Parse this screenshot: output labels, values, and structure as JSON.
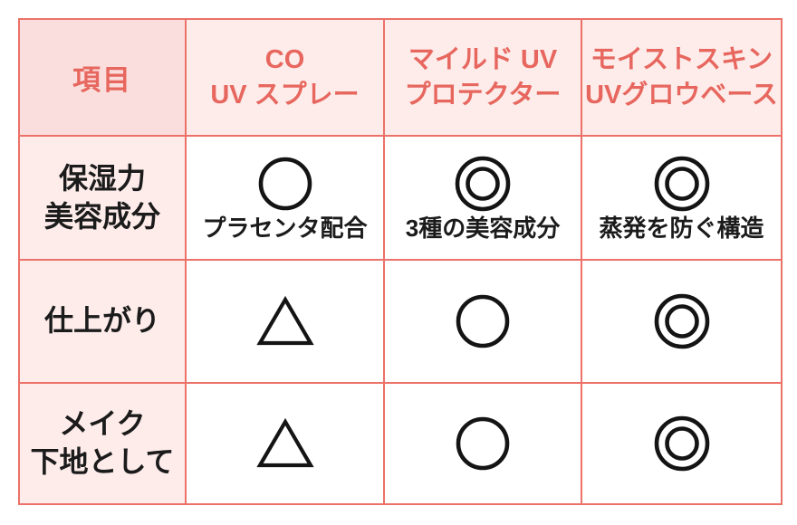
{
  "table": {
    "header": {
      "item_label": "項目",
      "products": [
        {
          "name_line1": "CO",
          "name_line2": "UV スプレー",
          "highlighted": false
        },
        {
          "name_line1": "マイルド UV",
          "name_line2": "プロテクター",
          "highlighted": false
        },
        {
          "name_line1": "モイストスキン",
          "name_line2": "UVグロウベース",
          "highlighted": true
        }
      ]
    },
    "rows": [
      {
        "label_line1": "保湿力",
        "label_line2": "美容成分",
        "cells": [
          {
            "rating": "circle",
            "note": "プラセンタ配合"
          },
          {
            "rating": "double-circle",
            "note": "3種の美容成分"
          },
          {
            "rating": "double-circle",
            "note": "蒸発を防ぐ構造"
          }
        ]
      },
      {
        "label_line1": "仕上がり",
        "label_line2": "",
        "cells": [
          {
            "rating": "triangle",
            "note": ""
          },
          {
            "rating": "circle",
            "note": ""
          },
          {
            "rating": "double-circle",
            "note": ""
          }
        ]
      },
      {
        "label_line1": "メイク",
        "label_line2": "下地として",
        "cells": [
          {
            "rating": "triangle",
            "note": ""
          },
          {
            "rating": "circle",
            "note": ""
          },
          {
            "rating": "double-circle",
            "note": ""
          }
        ]
      }
    ]
  },
  "chart_data": {
    "type": "table",
    "title": "",
    "columns": [
      "項目",
      "CO UV スプレー",
      "マイルド UV プロテクター",
      "モイストスキン UVグロウベース"
    ],
    "rows": [
      {
        "item": "保湿力 美容成分",
        "values": [
          "○ プラセンタ配合",
          "◎ 3種の美容成分",
          "◎ 蒸発を防ぐ構造"
        ]
      },
      {
        "item": "仕上がり",
        "values": [
          "△",
          "○",
          "◎"
        ]
      },
      {
        "item": "メイク下地として",
        "values": [
          "△",
          "○",
          "◎"
        ]
      }
    ],
    "highlighted_column": "モイストスキン UVグロウベース",
    "rating_symbols": {
      "double-circle": "◎",
      "circle": "○",
      "triangle": "△"
    }
  },
  "colors": {
    "border": "#ec7169",
    "header_text": "#e7675f",
    "corner_cell_bg": "#fadedd",
    "label_cell_bg": "#fdecea",
    "data_cell_bg": "#ffffff",
    "symbol": "#141414"
  }
}
